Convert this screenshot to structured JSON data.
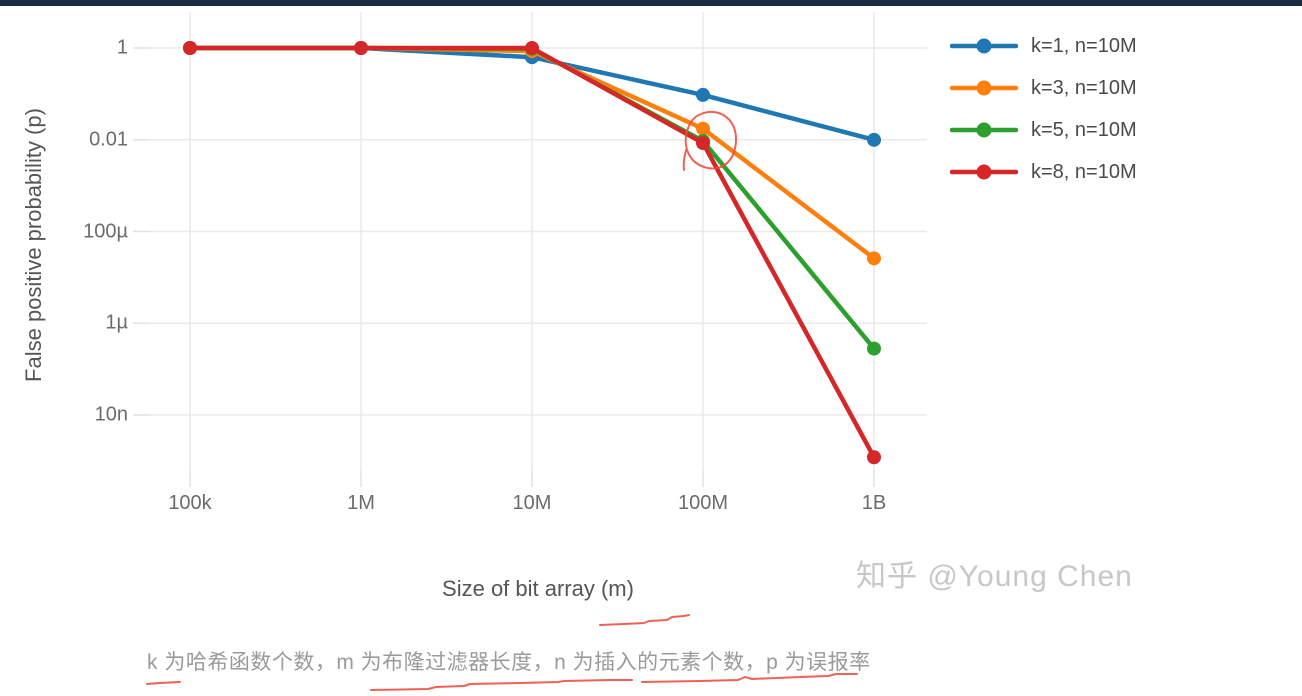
{
  "watermark": "知乎 @Young Chen",
  "caption": "k 为哈希函数个数，m 为布隆过滤器长度，n 为插入的元素个数，p 为误报率",
  "annotations": {
    "pen_color": "#ee4b3e",
    "marks": [
      "hand-drawn circle around k=3 and k=8 data points at m=100M",
      "hand-drawn underline below x-axis title",
      "hand-drawn underlines below caption terms"
    ]
  },
  "chart_data": {
    "type": "line",
    "title": "",
    "xlabel": "Size of bit array (m)",
    "ylabel": "False positive probability (p)",
    "x_scale": "log",
    "y_scale": "log",
    "grid": true,
    "legend_position": "top-right",
    "x_categories": [
      "100k",
      "1M",
      "10M",
      "100M",
      "1B"
    ],
    "x_values": [
      100000,
      1000000,
      10000000,
      100000000,
      1000000000
    ],
    "y_ticks": [
      {
        "value": 1,
        "label": "1"
      },
      {
        "value": 0.01,
        "label": "0.01"
      },
      {
        "value": 0.0001,
        "label": "100µ"
      },
      {
        "value": 1e-06,
        "label": "1µ"
      },
      {
        "value": 1e-08,
        "label": "10n"
      }
    ],
    "series": [
      {
        "name": "k=1, n=10M",
        "color": "#1f77b4",
        "values": [
          1,
          1,
          0.63,
          0.095,
          0.00995
        ]
      },
      {
        "name": "k=3, n=10M",
        "color": "#ff7f0e",
        "values": [
          1,
          1,
          0.857,
          0.0174,
          2.6e-05
        ]
      },
      {
        "name": "k=5, n=10M",
        "color": "#2ca02c",
        "values": [
          1,
          1,
          0.967,
          0.0094,
          2.8e-07
        ]
      },
      {
        "name": "k=8, n=10M",
        "color": "#d62728",
        "values": [
          1,
          1,
          0.997,
          0.0085,
          1.2e-09
        ]
      }
    ]
  }
}
